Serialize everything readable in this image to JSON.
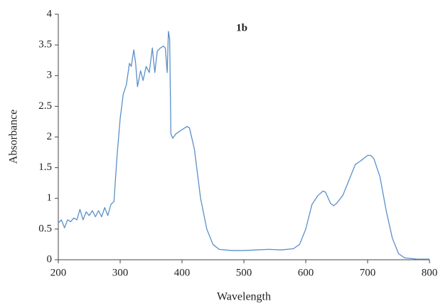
{
  "chart_data": {
    "type": "line",
    "title": "1b",
    "x_label": "Wavelength",
    "y_label": "Absorbance",
    "x": [
      200,
      205,
      210,
      215,
      220,
      225,
      230,
      235,
      240,
      245,
      250,
      255,
      260,
      265,
      270,
      275,
      280,
      285,
      290,
      295,
      300,
      305,
      310,
      315,
      318,
      322,
      325,
      328,
      333,
      337,
      342,
      347,
      352,
      356,
      360,
      365,
      370,
      373,
      376,
      378,
      380,
      382,
      385,
      390,
      400,
      408,
      412,
      420,
      430,
      440,
      450,
      460,
      480,
      500,
      520,
      540,
      560,
      580,
      590,
      600,
      610,
      620,
      628,
      632,
      640,
      645,
      650,
      660,
      670,
      680,
      690,
      700,
      705,
      710,
      720,
      730,
      740,
      750,
      760,
      780,
      800
    ],
    "series": [
      {
        "name": "1b",
        "color": "#5b8fc9",
        "values": [
          0.6,
          0.65,
          0.52,
          0.65,
          0.62,
          0.68,
          0.65,
          0.82,
          0.65,
          0.78,
          0.72,
          0.8,
          0.7,
          0.8,
          0.7,
          0.85,
          0.72,
          0.9,
          0.95,
          1.7,
          2.3,
          2.7,
          2.85,
          3.2,
          3.15,
          3.42,
          3.2,
          2.82,
          3.08,
          2.92,
          3.15,
          3.05,
          3.45,
          3.05,
          3.4,
          3.45,
          3.48,
          3.45,
          3.05,
          3.72,
          3.6,
          2.05,
          1.98,
          2.05,
          2.12,
          2.17,
          2.15,
          1.8,
          1.0,
          0.5,
          0.25,
          0.17,
          0.15,
          0.15,
          0.16,
          0.17,
          0.16,
          0.18,
          0.25,
          0.5,
          0.9,
          1.05,
          1.12,
          1.1,
          0.92,
          0.88,
          0.92,
          1.05,
          1.3,
          1.55,
          1.62,
          1.7,
          1.7,
          1.65,
          1.35,
          0.8,
          0.35,
          0.1,
          0.03,
          0.01,
          0.01
        ]
      }
    ],
    "xlim": [
      200,
      800
    ],
    "xticks": [
      200,
      300,
      400,
      500,
      600,
      700,
      800
    ],
    "ylim": [
      0,
      4
    ],
    "yticks": [
      0,
      0.5,
      1,
      1.5,
      2,
      2.5,
      3,
      3.5,
      4
    ]
  }
}
